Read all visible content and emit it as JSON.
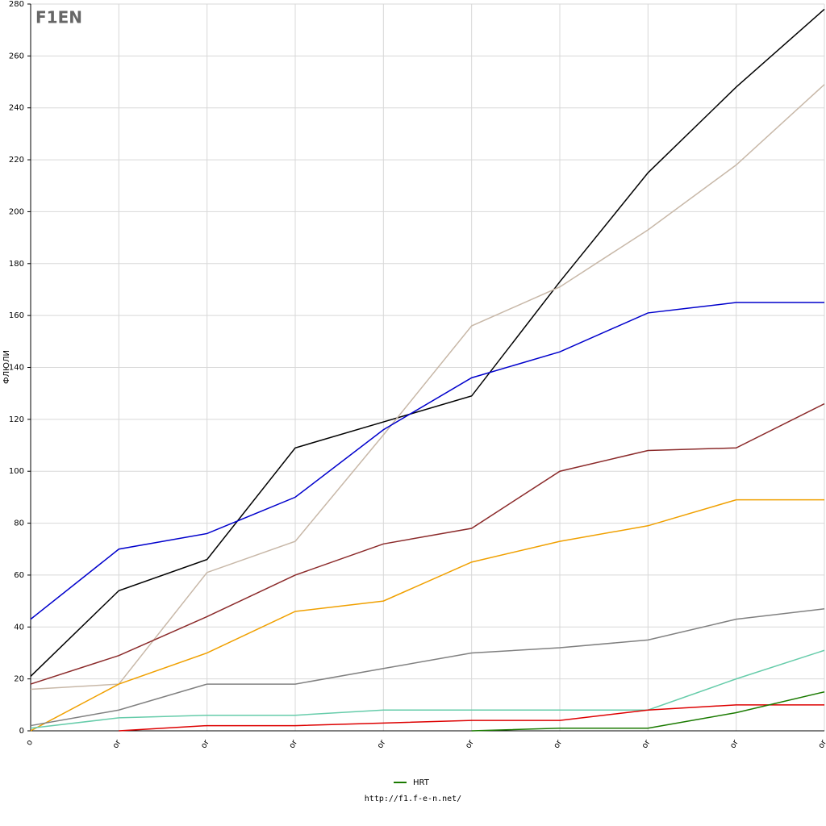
{
  "logo": "F1EN",
  "chart_data": {
    "type": "line",
    "ylabel": "ФЛЮЛИ",
    "footer": "http://f1.f-e-n.net/",
    "categories": [
      "o",
      "or",
      "or",
      "or",
      "or",
      "or",
      "or",
      "or",
      "or",
      "or"
    ],
    "ylim": [
      0,
      280
    ],
    "yticks": [
      0,
      20,
      40,
      60,
      80,
      100,
      120,
      140,
      160,
      180,
      200,
      220,
      240,
      260,
      280
    ],
    "grid": true,
    "legend": "bottom",
    "series": [
      {
        "color": "#000000",
        "values": [
          21,
          54,
          66,
          109,
          119,
          129,
          173,
          215,
          248,
          278
        ]
      },
      {
        "color": "#c8b8a8",
        "values": [
          16,
          18,
          61,
          73,
          114,
          156,
          171,
          193,
          218,
          249
        ]
      },
      {
        "color": "#0000cc",
        "values": [
          43,
          70,
          76,
          90,
          116,
          136,
          146,
          161,
          165,
          165
        ]
      },
      {
        "color": "#8b2a2a",
        "values": [
          18,
          29,
          44,
          60,
          72,
          78,
          100,
          108,
          109,
          126
        ]
      },
      {
        "color": "#f0a000",
        "values": [
          0,
          18,
          30,
          46,
          50,
          65,
          73,
          79,
          89,
          89
        ]
      },
      {
        "color": "#808080",
        "values": [
          2,
          8,
          18,
          18,
          24,
          30,
          32,
          35,
          43,
          47
        ]
      },
      {
        "color": "#66ccaa",
        "values": [
          1,
          5,
          6,
          6,
          8,
          8,
          8,
          8,
          20,
          31
        ]
      },
      {
        "color": "#dd0000",
        "values": [
          null,
          0,
          2,
          2,
          3,
          4,
          4,
          8,
          10,
          10
        ]
      },
      {
        "name": "HRT",
        "color": "#1a7a00",
        "values": [
          null,
          null,
          null,
          null,
          null,
          0,
          1,
          1,
          7,
          15
        ]
      }
    ]
  }
}
